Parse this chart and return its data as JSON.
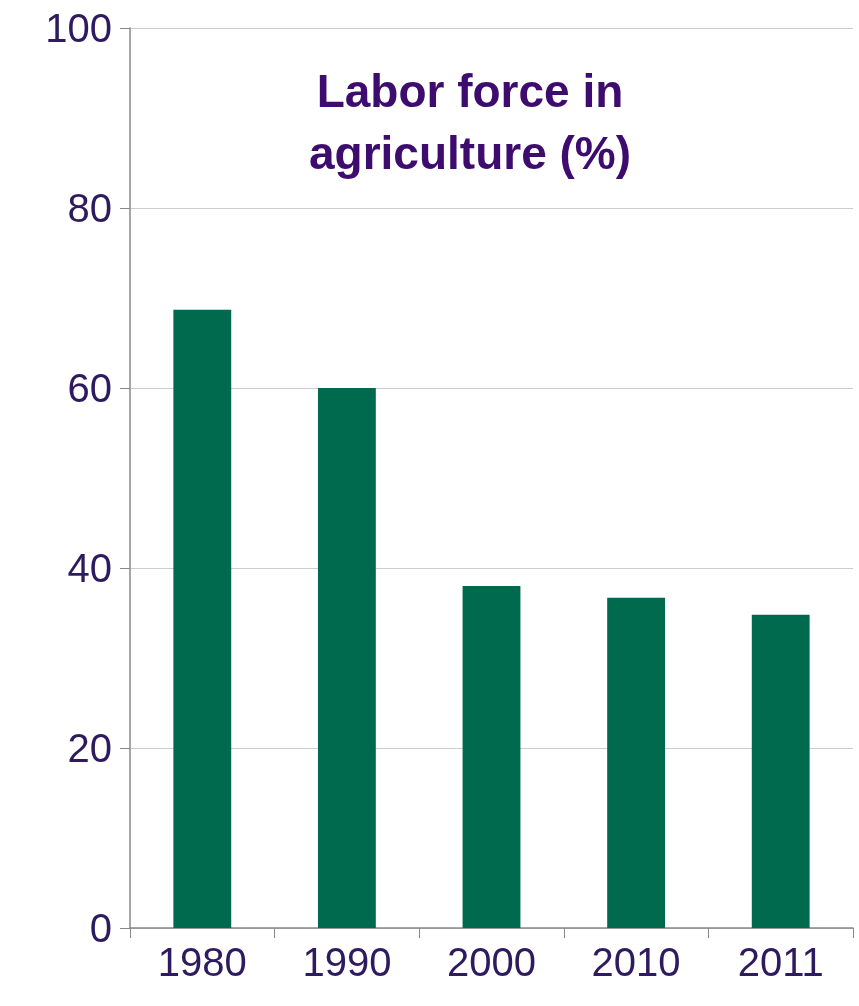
{
  "chart_data": {
    "type": "bar",
    "title": "Labor force in\nagriculture (%)",
    "categories": [
      "1980",
      "1990",
      "2000",
      "2010",
      "2011"
    ],
    "values": [
      68.7,
      60,
      38,
      36.7,
      34.8
    ],
    "color": "#006a4e",
    "ylim": [
      0,
      100
    ],
    "yticks": [
      0,
      20,
      40,
      60,
      80,
      100
    ],
    "grid": "y"
  }
}
